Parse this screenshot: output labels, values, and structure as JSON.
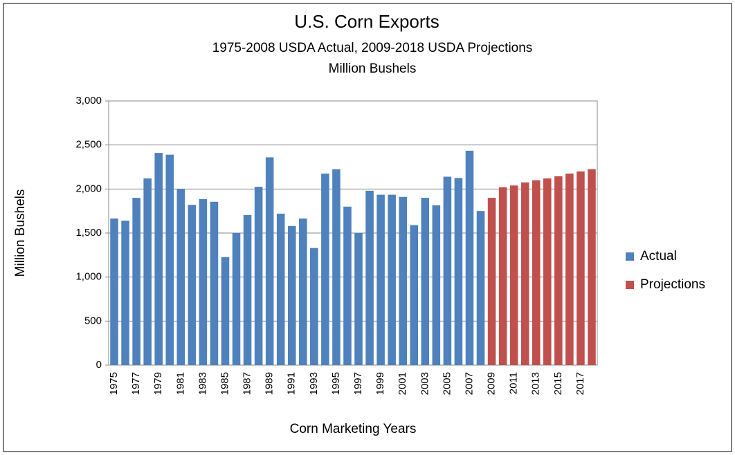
{
  "chart_data": {
    "type": "bar",
    "title": "U.S. Corn Exports",
    "subtitle": "1975-2008 USDA Actual, 2009-2018 USDA Projections",
    "subtitle2": "Million Bushels",
    "x_label": "Corn Marketing Years",
    "y_label": "Million Bushels",
    "categories": [
      "1975",
      null,
      "1977",
      null,
      "1979",
      null,
      "1981",
      null,
      "1983",
      null,
      "1985",
      null,
      "1987",
      null,
      "1989",
      null,
      "1991",
      null,
      "1993",
      null,
      "1995",
      null,
      "1997",
      null,
      "1999",
      null,
      "2001",
      null,
      "2003",
      null,
      "2005",
      null,
      "2007",
      null,
      "2009",
      null,
      "2011",
      null,
      "2013",
      null,
      "2015",
      null,
      "2017",
      null
    ],
    "series": [
      {
        "name": "Actual",
        "color": "#4f81bd",
        "values": [
          1665,
          1640,
          1900,
          2120,
          2410,
          2390,
          2000,
          1820,
          1885,
          1855,
          1225,
          1500,
          1705,
          2025,
          2360,
          1720,
          1580,
          1665,
          1330,
          2175,
          2225,
          1800,
          1500,
          1980,
          1935,
          1935,
          1910,
          1590,
          1900,
          1815,
          2140,
          2125,
          2435,
          1750,
          null,
          null,
          null,
          null,
          null,
          null,
          null,
          null,
          null,
          null
        ]
      },
      {
        "name": "Projections",
        "color": "#c0504d",
        "values": [
          null,
          null,
          null,
          null,
          null,
          null,
          null,
          null,
          null,
          null,
          null,
          null,
          null,
          null,
          null,
          null,
          null,
          null,
          null,
          null,
          null,
          null,
          null,
          null,
          null,
          null,
          null,
          null,
          null,
          null,
          null,
          null,
          null,
          null,
          1900,
          2020,
          2040,
          2075,
          2100,
          2120,
          2145,
          2175,
          2200,
          2225
        ]
      }
    ],
    "ylim": [
      0,
      3000
    ],
    "yticks": [
      0,
      500,
      {
        "value": 1000,
        "label": "1,000"
      },
      {
        "value": 1500,
        "label": "1,500"
      },
      {
        "value": 2000,
        "label": "2,000"
      },
      {
        "value": 2500,
        "label": "2,500"
      },
      {
        "value": 3000,
        "label": "3,000"
      }
    ],
    "grid": true,
    "legend": "right"
  }
}
